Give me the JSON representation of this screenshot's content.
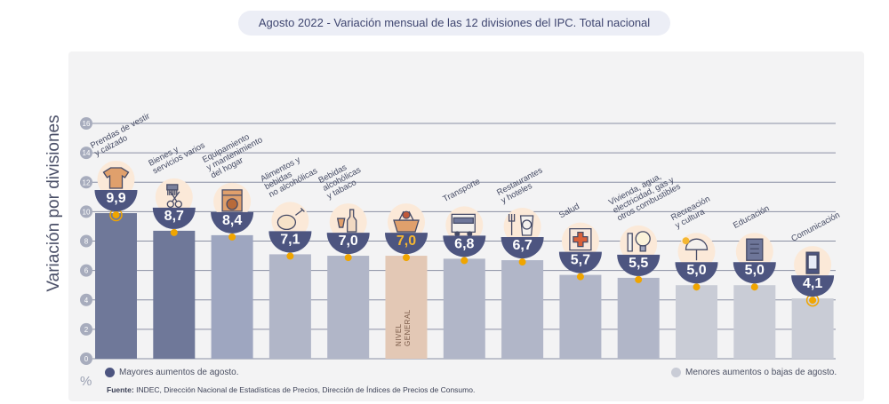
{
  "chart_data": {
    "type": "bar",
    "title": "Agosto 2022 - Variación mensual de las 12 divisiones del IPC. Total nacional",
    "ylabel": "Variación por divisiones",
    "unit_symbol": "%",
    "ylim": [
      0,
      16
    ],
    "yticks": [
      "0",
      "2",
      "4",
      "6",
      "8",
      "10",
      "12",
      "14",
      "16"
    ],
    "categories": [
      "Prendas de vestir y calzado",
      "Bienes y servicios varios",
      "Equipamiento y mantenimiento del hogar",
      "Alimentos y bebidas no alcohólicas",
      "Bebidas alcohólicas y tabaco",
      "Nivel general",
      "Transporte",
      "Restaurantes y hoteles",
      "Salud",
      "Vivienda, agua, electricidad, gas y otros combustibles",
      "Recreación y cultura",
      "Educación",
      "Comunicación"
    ],
    "label_lines": [
      [
        "Prendas de vestir",
        "y calzado"
      ],
      [
        "Bienes y",
        "servicios varios"
      ],
      [
        "Equipamiento",
        "y mantenimiento",
        "del hogar"
      ],
      [
        "Alimentos y",
        "bebidas",
        "no alcohólicas"
      ],
      [
        "Bebidas",
        "alcohólicas",
        "y tabaco"
      ],
      [],
      [
        "Transporte"
      ],
      [
        "Restaurantes",
        "y hoteles"
      ],
      [
        "Salud"
      ],
      [
        "Vivienda, agua,",
        "electricidad, gas y",
        "otros combustibles"
      ],
      [
        "Recreación",
        "y cultura"
      ],
      [
        "Educación"
      ],
      [
        "Comunicación"
      ]
    ],
    "values": [
      9.9,
      8.7,
      8.4,
      7.1,
      7.0,
      7.0,
      6.8,
      6.7,
      5.7,
      5.5,
      5.0,
      5.0,
      4.1
    ],
    "value_labels": [
      "9,9",
      "8,7",
      "8,4",
      "7,1",
      "7,0",
      "7,0",
      "6,8",
      "6,7",
      "5,7",
      "5,5",
      "5,0",
      "5,0",
      "4,1"
    ],
    "bar_colors": [
      "#6f7899",
      "#6f7899",
      "#9ea6c0",
      "#b1b6c8",
      "#b1b6c8",
      "#e3c8b5",
      "#b1b6c8",
      "#b1b6c8",
      "#b1b6c8",
      "#b1b6c8",
      "#c9ccd6",
      "#c9ccd6",
      "#c9ccd6"
    ],
    "icons": [
      "tshirt-icon",
      "comb-scissors-icon",
      "washing-machine-icon",
      "food-icon",
      "wine-icon",
      "shopping-basket-icon",
      "bus-icon",
      "utensils-icon",
      "health-cross-icon",
      "lightbulb-icon",
      "umbrella-icon",
      "book-icon",
      "phone-icon"
    ],
    "nivel_general_label": "NIVEL GENERAL",
    "highlight_value_color": "#f5b731",
    "marker_color": "#f0a500"
  },
  "legend": {
    "high": {
      "label": "Mayores aumentos de agosto.",
      "color": "#4d5580"
    },
    "low": {
      "label": "Menores aumentos o bajas de agosto.",
      "color": "#c9ccd6"
    }
  },
  "footer": {
    "source_label": "Fuente:",
    "source_text": "INDEC, Dirección Nacional de Estadísticas de Precios, Dirección de Índices de Precios de Consumo."
  }
}
